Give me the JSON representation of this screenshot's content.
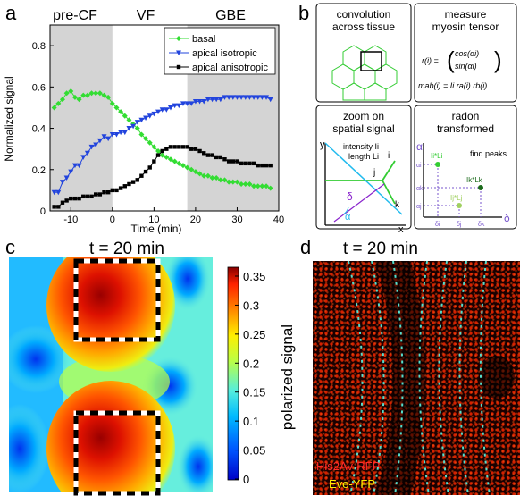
{
  "panels": {
    "a": {
      "letter": "a",
      "phases": [
        "pre-CF",
        "VF",
        "GBE"
      ],
      "xlabel": "Time (min)",
      "ylabel": "Normalized signal",
      "xticks": [
        -10,
        0,
        10,
        20,
        30,
        40
      ],
      "yticks": [
        "0",
        "0.2",
        "0.4",
        "0.6",
        "0.8"
      ],
      "legend": [
        "basal",
        "apical isotropic",
        "apical anisotropic"
      ]
    },
    "b": {
      "letter": "b",
      "box1": {
        "line1": "convolution",
        "line2": "across tissue"
      },
      "box2": {
        "line1": "measure",
        "line2": "myosin tensor",
        "eq1_lhs": "r(i) =",
        "eq1_top": "cos(αi)",
        "eq1_bot": "sin(αi)",
        "eq2": "mab(i) = Ii ra(i) rb(i)"
      },
      "box3": {
        "line1": "zoom on",
        "line2": "spatial signal",
        "intensity": "intensity Ii",
        "length": "length Li",
        "y": "y",
        "x": "x",
        "i": "i",
        "j": "j",
        "k": "k",
        "delta": "δ",
        "alpha": "α"
      },
      "box4": {
        "line1": "radon",
        "line2": "transformed",
        "alpha_axis": "α",
        "delta_axis": "δ",
        "find_peaks": "find peaks",
        "peak_i": "Ii*Li",
        "peak_j": "Ij*Lj",
        "peak_k": "Ik*Lk",
        "ai": "αi",
        "ak": "αk",
        "aj": "αj",
        "di": "δi",
        "dj": "δj",
        "dk": "δk"
      }
    },
    "c": {
      "letter": "c",
      "title": "t = 20 min",
      "colorbar_label": "polarized signal",
      "colorbar_ticks": [
        "0.35",
        "0.3",
        "0.25",
        "0.2",
        "0.15",
        "0.1",
        "0.05",
        "0"
      ]
    },
    "d": {
      "letter": "d",
      "title": "t = 20 min",
      "label_red": "His2Av-RFP",
      "label_yellow": "Eve-YFP"
    }
  },
  "chart_data": {
    "type": "line",
    "xlabel": "Time (min)",
    "ylabel": "Normalized signal",
    "xlim": [
      -15,
      40
    ],
    "ylim": [
      0,
      0.9
    ],
    "shaded_regions": [
      [
        -15,
        0
      ],
      [
        18,
        40
      ]
    ],
    "legend_position": "top-right",
    "series": [
      {
        "name": "basal",
        "color": "#33dd33",
        "marker": "diamond",
        "x": [
          -14,
          -13,
          -12,
          -11,
          -10,
          -9,
          -8,
          -7,
          -6,
          -5,
          -4,
          -3,
          -2,
          -1,
          0,
          1,
          2,
          3,
          4,
          5,
          6,
          7,
          8,
          9,
          10,
          11,
          12,
          13,
          14,
          15,
          16,
          17,
          18,
          19,
          20,
          21,
          22,
          23,
          24,
          25,
          26,
          27,
          28,
          29,
          30,
          31,
          32,
          33,
          34,
          35,
          36,
          37,
          38
        ],
        "y": [
          0.5,
          0.52,
          0.54,
          0.57,
          0.58,
          0.55,
          0.54,
          0.56,
          0.56,
          0.57,
          0.57,
          0.57,
          0.56,
          0.55,
          0.52,
          0.5,
          0.48,
          0.46,
          0.44,
          0.42,
          0.4,
          0.37,
          0.35,
          0.33,
          0.31,
          0.29,
          0.27,
          0.26,
          0.25,
          0.24,
          0.23,
          0.22,
          0.21,
          0.2,
          0.19,
          0.18,
          0.17,
          0.17,
          0.16,
          0.16,
          0.15,
          0.15,
          0.14,
          0.14,
          0.14,
          0.13,
          0.13,
          0.13,
          0.12,
          0.12,
          0.12,
          0.12,
          0.11
        ]
      },
      {
        "name": "apical isotropic",
        "color": "#2244dd",
        "marker": "triangle-down",
        "x": [
          -14,
          -13,
          -12,
          -11,
          -10,
          -9,
          -8,
          -7,
          -6,
          -5,
          -4,
          -3,
          -2,
          -1,
          0,
          1,
          2,
          3,
          4,
          5,
          6,
          7,
          8,
          9,
          10,
          11,
          12,
          13,
          14,
          15,
          16,
          17,
          18,
          19,
          20,
          21,
          22,
          23,
          24,
          25,
          26,
          27,
          28,
          29,
          30,
          31,
          32,
          33,
          34,
          35,
          36,
          37,
          38
        ],
        "y": [
          0.09,
          0.09,
          0.14,
          0.16,
          0.19,
          0.22,
          0.22,
          0.26,
          0.28,
          0.31,
          0.32,
          0.34,
          0.36,
          0.35,
          0.37,
          0.37,
          0.38,
          0.38,
          0.4,
          0.41,
          0.43,
          0.44,
          0.45,
          0.46,
          0.47,
          0.48,
          0.49,
          0.49,
          0.5,
          0.51,
          0.51,
          0.52,
          0.52,
          0.52,
          0.53,
          0.53,
          0.53,
          0.54,
          0.54,
          0.54,
          0.54,
          0.55,
          0.55,
          0.55,
          0.55,
          0.55,
          0.55,
          0.55,
          0.55,
          0.55,
          0.55,
          0.55,
          0.54
        ]
      },
      {
        "name": "apical anisotropic",
        "color": "#000000",
        "marker": "square",
        "x": [
          -14,
          -13,
          -12,
          -11,
          -10,
          -9,
          -8,
          -7,
          -6,
          -5,
          -4,
          -3,
          -2,
          -1,
          0,
          1,
          2,
          3,
          4,
          5,
          6,
          7,
          8,
          9,
          10,
          11,
          12,
          13,
          14,
          15,
          16,
          17,
          18,
          19,
          20,
          21,
          22,
          23,
          24,
          25,
          26,
          27,
          28,
          29,
          30,
          31,
          32,
          33,
          34,
          35,
          36,
          37,
          38
        ],
        "y": [
          0.02,
          0.02,
          0.04,
          0.05,
          0.06,
          0.06,
          0.06,
          0.07,
          0.07,
          0.07,
          0.08,
          0.08,
          0.09,
          0.09,
          0.1,
          0.1,
          0.11,
          0.12,
          0.13,
          0.14,
          0.15,
          0.17,
          0.19,
          0.21,
          0.24,
          0.27,
          0.29,
          0.3,
          0.31,
          0.31,
          0.31,
          0.31,
          0.31,
          0.3,
          0.3,
          0.29,
          0.28,
          0.27,
          0.27,
          0.26,
          0.26,
          0.25,
          0.24,
          0.24,
          0.24,
          0.23,
          0.23,
          0.23,
          0.23,
          0.22,
          0.22,
          0.22,
          0.22
        ]
      }
    ]
  }
}
